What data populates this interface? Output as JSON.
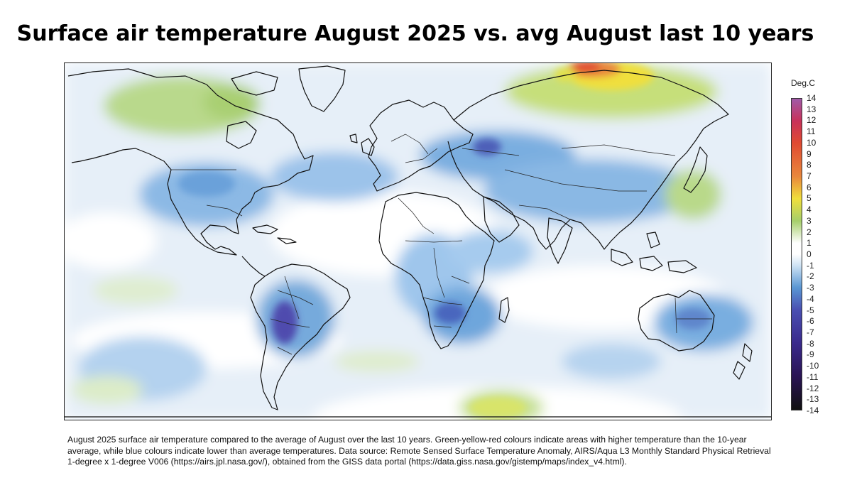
{
  "title": "Surface air temperature August 2025 vs. avg August last 10 years",
  "legend": {
    "unit_label": "Deg.C",
    "ticks": [
      "14",
      "13",
      "12",
      "11",
      "10",
      "9",
      "8",
      "7",
      "6",
      "5",
      "4",
      "3",
      "2",
      "1",
      "0",
      "-1",
      "-2",
      "-3",
      "-4",
      "-5",
      "-6",
      "-7",
      "-8",
      "-9",
      "-10",
      "-11",
      "-12",
      "-13",
      "-14"
    ],
    "stops": [
      {
        "value": 14,
        "color": "#a05aa8"
      },
      {
        "value": 12,
        "color": "#c8325a"
      },
      {
        "value": 10,
        "color": "#e04a32"
      },
      {
        "value": 7,
        "color": "#e9873c"
      },
      {
        "value": 5,
        "color": "#f0df3c"
      },
      {
        "value": 3,
        "color": "#a6cf6a"
      },
      {
        "value": 1,
        "color": "#ffffff"
      },
      {
        "value": 0,
        "color": "#ffffff"
      },
      {
        "value": -1,
        "color": "#cfe3f4"
      },
      {
        "value": -3,
        "color": "#5a97d4"
      },
      {
        "value": -5,
        "color": "#4a4fb2"
      },
      {
        "value": -8,
        "color": "#3a2a8c"
      },
      {
        "value": -11,
        "color": "#2a1454"
      },
      {
        "value": -14,
        "color": "#111111"
      }
    ]
  },
  "caption": "August 2025 surface air temperature compared to the average of August over the last 10 years. Green-yellow-red colours indicate areas with higher temperature than the 10-year average, while blue colours indicate lower than average temperatures. Data source: Remote Sensed Surface Temperature Anomaly, AIRS/Aqua L3 Monthly Standard Physical Retrieval 1-degree x 1-degree V006 (https://airs.jpl.nasa.gov/), obtained from the GISS data portal (https://data.giss.nasa.gov/gistemp/maps/index_v4.html)."
}
